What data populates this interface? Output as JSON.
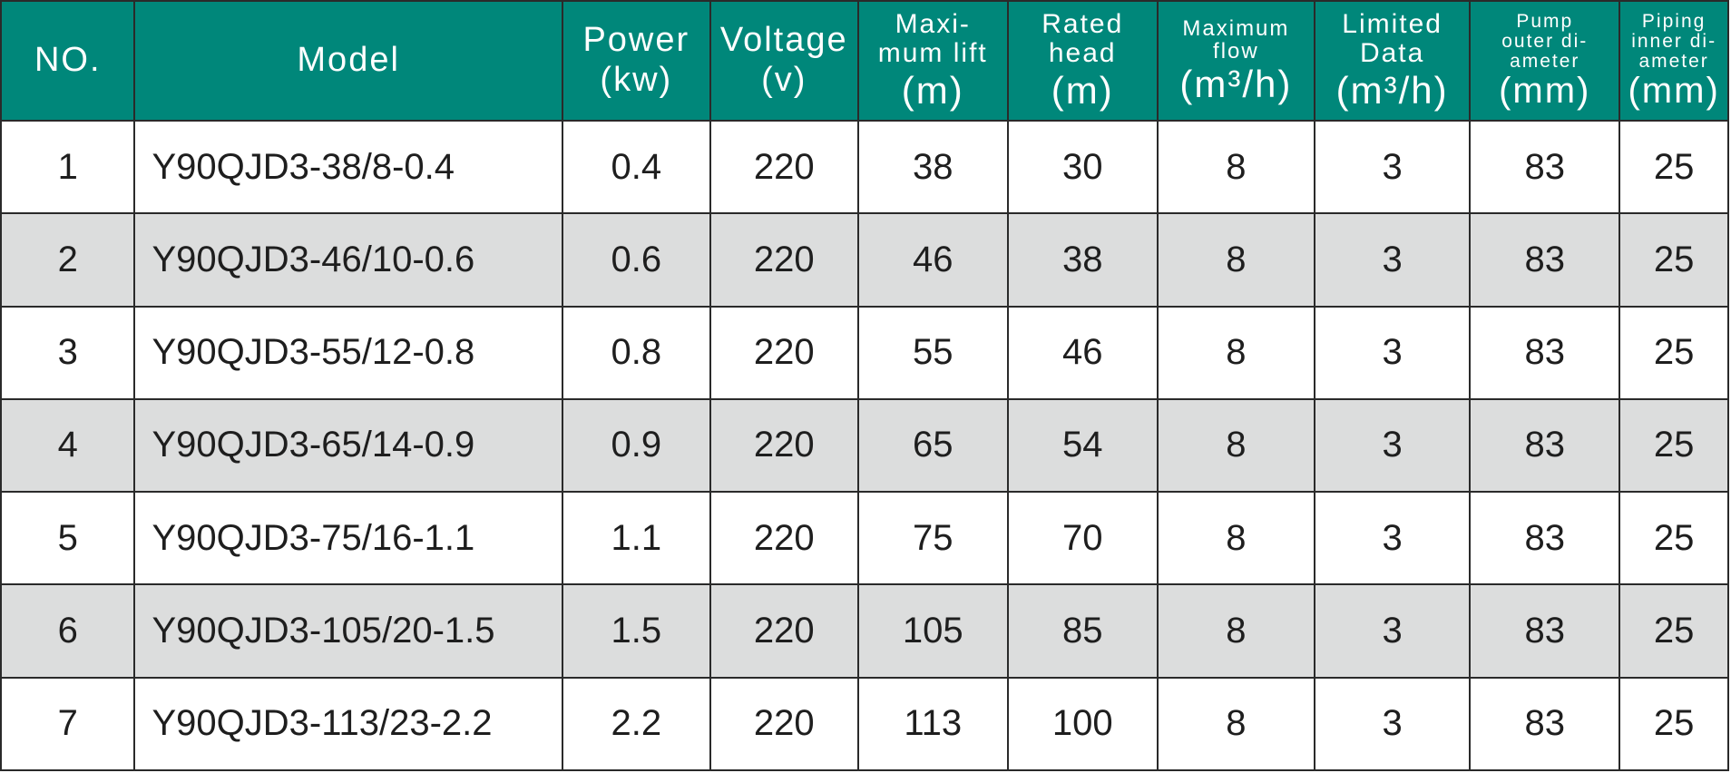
{
  "colors": {
    "header_bg": "#00877a",
    "header_text": "#ffffff",
    "stripe_bg": "#dcdddd",
    "border": "#2a2a2a"
  },
  "headers": [
    {
      "top": "NO.",
      "unit": ""
    },
    {
      "top": "Model",
      "unit": ""
    },
    {
      "top": "Power",
      "unit": "(kw)"
    },
    {
      "top": "Voltage",
      "unit": "(v)"
    },
    {
      "top": "Maxi-\nmum lift",
      "unit": "(m)"
    },
    {
      "top": "Rated\nhead",
      "unit": "(m)"
    },
    {
      "top": "Maximum\nflow",
      "unit": "(m³/h)"
    },
    {
      "top": "Limited\nData",
      "unit": "(m³/h)"
    },
    {
      "top": "Pump\nouter di-\nameter",
      "unit": "(mm)"
    },
    {
      "top": "Piping\ninner di-\nameter",
      "unit": "(mm)"
    }
  ],
  "rows": [
    [
      "1",
      "Y90QJD3-38/8-0.4",
      "0.4",
      "220",
      "38",
      "30",
      "8",
      "3",
      "83",
      "25"
    ],
    [
      "2",
      "Y90QJD3-46/10-0.6",
      "0.6",
      "220",
      "46",
      "38",
      "8",
      "3",
      "83",
      "25"
    ],
    [
      "3",
      "Y90QJD3-55/12-0.8",
      "0.8",
      "220",
      "55",
      "46",
      "8",
      "3",
      "83",
      "25"
    ],
    [
      "4",
      "Y90QJD3-65/14-0.9",
      "0.9",
      "220",
      "65",
      "54",
      "8",
      "3",
      "83",
      "25"
    ],
    [
      "5",
      "Y90QJD3-75/16-1.1",
      "1.1",
      "220",
      "75",
      "70",
      "8",
      "3",
      "83",
      "25"
    ],
    [
      "6",
      "Y90QJD3-105/20-1.5",
      "1.5",
      "220",
      "105",
      "85",
      "8",
      "3",
      "83",
      "25"
    ],
    [
      "7",
      "Y90QJD3-113/23-2.2",
      "2.2",
      "220",
      "113",
      "100",
      "8",
      "3",
      "83",
      "25"
    ]
  ]
}
